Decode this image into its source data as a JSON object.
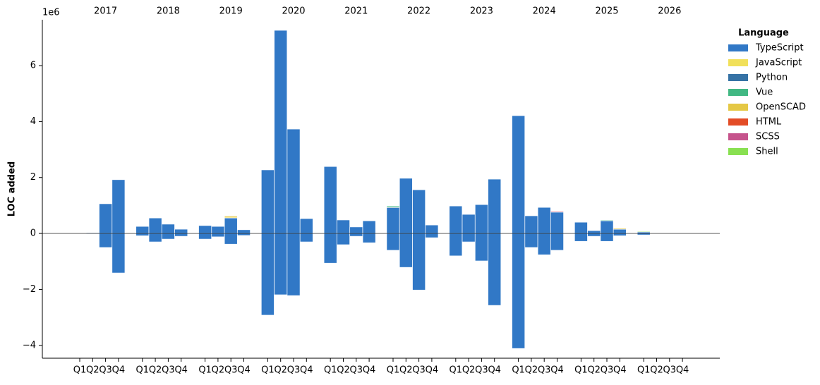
{
  "chart_data": {
    "type": "bar",
    "y_label": "LOC added",
    "offset_label": "1e6",
    "legend_title": "Language",
    "years": [
      "2017",
      "2018",
      "2019",
      "2020",
      "2021",
      "2022",
      "2023",
      "2024",
      "2025",
      "2026"
    ],
    "categories": [
      "Q1",
      "Q2",
      "Q3",
      "Q4",
      "Q1",
      "Q2",
      "Q3",
      "Q4",
      "Q1",
      "Q2",
      "Q3",
      "Q4",
      "Q1",
      "Q2",
      "Q3",
      "Q4",
      "Q1",
      "Q2",
      "Q3",
      "Q4",
      "Q1",
      "Q2",
      "Q3",
      "Q4",
      "Q1",
      "Q2",
      "Q3",
      "Q4",
      "Q1",
      "Q2",
      "Q3",
      "Q4",
      "Q1",
      "Q2",
      "Q3",
      "Q4",
      "Q1",
      "Q2",
      "Q3",
      "Q4"
    ],
    "ylim": [
      -4.46,
      7.64
    ],
    "yticks": [
      {
        "value": -4,
        "label": "−4"
      },
      {
        "value": -2,
        "label": "−2"
      },
      0,
      2,
      4,
      6
    ],
    "series": [
      {
        "name": "TypeScript",
        "color": "#3178c6",
        "values": [
          0,
          0.02,
          1.06,
          1.92,
          0.25,
          0.55,
          0.33,
          0.15,
          0.28,
          0.25,
          0.55,
          0.13,
          2.27,
          7.26,
          3.73,
          0.53,
          2.39,
          0.48,
          0.23,
          0.45,
          0.92,
          1.97,
          1.56,
          0.3,
          0.98,
          0.68,
          1.03,
          1.94,
          4.21,
          0.63,
          0.93,
          0.76,
          0.4,
          0.1,
          0.45,
          0.15,
          0.05,
          0,
          0,
          0
        ],
        "removed": [
          0,
          0,
          -0.5,
          -1.41,
          -0.08,
          -0.3,
          -0.2,
          -0.1,
          -0.2,
          -0.12,
          -0.38,
          -0.07,
          -2.92,
          -2.19,
          -2.22,
          -0.3,
          -1.06,
          -0.4,
          -0.1,
          -0.33,
          -0.6,
          -1.21,
          -2.02,
          -0.15,
          -0.8,
          -0.3,
          -0.98,
          -2.57,
          -4.11,
          -0.5,
          -0.76,
          -0.6,
          -0.28,
          -0.1,
          -0.28,
          -0.08,
          -0.05,
          0,
          0,
          0
        ]
      },
      {
        "name": "JavaScript",
        "color": "#f1e05a",
        "values": [
          0,
          0,
          0,
          0,
          0,
          0,
          0,
          0,
          0,
          0,
          0.03,
          0,
          0,
          0,
          0,
          0,
          0,
          0,
          0,
          0,
          0,
          0,
          0,
          0,
          0,
          0,
          0,
          0,
          0,
          0,
          0,
          0,
          0,
          0,
          0,
          0,
          0,
          0,
          0,
          0
        ]
      },
      {
        "name": "Python",
        "color": "#3572a5",
        "values": [
          0,
          0,
          0,
          0,
          0,
          0,
          0,
          0,
          0,
          0,
          0,
          0,
          0,
          0,
          0,
          0,
          0,
          0,
          0,
          0,
          0.02,
          0,
          0,
          0,
          0,
          0,
          0,
          0,
          0,
          0,
          0,
          0,
          0,
          0,
          0,
          0,
          0.01,
          0,
          0,
          0
        ]
      },
      {
        "name": "Vue",
        "color": "#41b883",
        "values": [
          0,
          0,
          0,
          0,
          0,
          0,
          0,
          0,
          0,
          0,
          0,
          0,
          0,
          0,
          0,
          0,
          0,
          0,
          0,
          0,
          0.04,
          0,
          0,
          0,
          0,
          0,
          0,
          0,
          0,
          0,
          0,
          0,
          0,
          0,
          0.02,
          0,
          0,
          0,
          0,
          0
        ]
      },
      {
        "name": "OpenSCAD",
        "color": "#e5c845",
        "values": [
          0,
          0,
          0,
          0,
          0,
          0,
          0,
          0,
          0,
          0,
          0.04,
          0,
          0,
          0,
          0,
          0,
          0,
          0,
          0,
          0,
          0,
          0,
          0,
          0,
          0,
          0,
          0,
          0,
          0,
          0,
          0,
          0,
          0,
          0,
          0,
          0.03,
          0,
          0,
          0,
          0
        ]
      },
      {
        "name": "HTML",
        "color": "#e34c26",
        "values": [
          0,
          0,
          0,
          0,
          0,
          0,
          0,
          0,
          0,
          0,
          0,
          0,
          0,
          0,
          0,
          0,
          0,
          0,
          0,
          0,
          0,
          0,
          0,
          0,
          0,
          0,
          0,
          0,
          0,
          0,
          0,
          0.02,
          0,
          0,
          0,
          0,
          0,
          0,
          0,
          0
        ]
      },
      {
        "name": "SCSS",
        "color": "#c6538c",
        "values": [
          0,
          0,
          0,
          0,
          0,
          0,
          0,
          0,
          0,
          0,
          0,
          0,
          0,
          0,
          0,
          0,
          0,
          0,
          0,
          0,
          0,
          0,
          0,
          0,
          0,
          0,
          0,
          0,
          0,
          0,
          0,
          0.02,
          0,
          0,
          0,
          0,
          0,
          0,
          0,
          0
        ]
      },
      {
        "name": "Shell",
        "color": "#89e051",
        "values": [
          0,
          0,
          0,
          0,
          0,
          0,
          0,
          0,
          0,
          0,
          0,
          0,
          0,
          0,
          0,
          0,
          0,
          0,
          0,
          0,
          0,
          0,
          0,
          0,
          0,
          0,
          0,
          0,
          0,
          0,
          0,
          0,
          0,
          0,
          0,
          0,
          0.02,
          0,
          0,
          0
        ]
      }
    ]
  }
}
